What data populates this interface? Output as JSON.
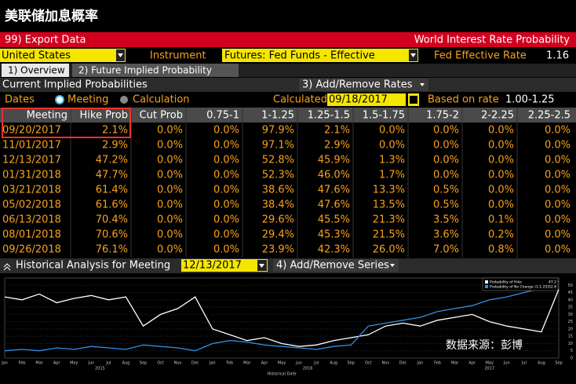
{
  "title": "美联储加息概率",
  "toolbar": {
    "export": "99) Export Data",
    "heading": "World Interest Rate Probability"
  },
  "selectors": {
    "country": "United States",
    "instrument_label": "Instrument",
    "instrument": "Futures: Fed Funds - Effective",
    "rate_label": "Fed Effective Rate",
    "rate": "1.16"
  },
  "tabs": [
    "1) Overview",
    "2) Future Implied Probability"
  ],
  "section": {
    "title": "Current Implied Probabilities",
    "button": "3) Add/Remove Rates"
  },
  "options": {
    "dates_label": "Dates",
    "meeting": "Meeting",
    "calculation": "Calculation",
    "calculated_label": "Calculated",
    "calculated": "09/18/2017",
    "based_label": "Based on rate",
    "based": "1.00-1.25"
  },
  "table": {
    "columns": [
      "Meeting",
      "Hike Prob",
      "Cut Prob",
      "0.75-1",
      "1-1.25",
      "1.25-1.5",
      "1.5-1.75",
      "1.75-2",
      "2-2.25",
      "2.25-2.5"
    ],
    "rows": [
      [
        "09/20/2017",
        "2.1%",
        "0.0%",
        "0.0%",
        "97.9%",
        "2.1%",
        "0.0%",
        "0.0%",
        "0.0%",
        "0.0%"
      ],
      [
        "11/01/2017",
        "2.9%",
        "0.0%",
        "0.0%",
        "97.1%",
        "2.9%",
        "0.0%",
        "0.0%",
        "0.0%",
        "0.0%"
      ],
      [
        "12/13/2017",
        "47.2%",
        "0.0%",
        "0.0%",
        "52.8%",
        "45.9%",
        "1.3%",
        "0.0%",
        "0.0%",
        "0.0%"
      ],
      [
        "01/31/2018",
        "47.7%",
        "0.0%",
        "0.0%",
        "52.3%",
        "46.0%",
        "1.7%",
        "0.0%",
        "0.0%",
        "0.0%"
      ],
      [
        "03/21/2018",
        "61.4%",
        "0.0%",
        "0.0%",
        "38.6%",
        "47.6%",
        "13.3%",
        "0.5%",
        "0.0%",
        "0.0%"
      ],
      [
        "05/02/2018",
        "61.6%",
        "0.0%",
        "0.0%",
        "38.4%",
        "47.6%",
        "13.5%",
        "0.5%",
        "0.0%",
        "0.0%"
      ],
      [
        "06/13/2018",
        "70.4%",
        "0.0%",
        "0.0%",
        "29.6%",
        "45.5%",
        "21.3%",
        "3.5%",
        "0.1%",
        "0.0%"
      ],
      [
        "08/01/2018",
        "70.6%",
        "0.0%",
        "0.0%",
        "29.4%",
        "45.3%",
        "21.5%",
        "3.6%",
        "0.2%",
        "0.0%"
      ],
      [
        "09/26/2018",
        "76.1%",
        "0.0%",
        "0.0%",
        "23.9%",
        "42.3%",
        "26.0%",
        "7.0%",
        "0.8%",
        "0.0%"
      ]
    ]
  },
  "history": {
    "title": "Historical Analysis for Meeting",
    "meeting": "12/13/2017",
    "button": "4) Add/Remove Series",
    "chart": {
      "type": "line",
      "categories": [
        "Jan",
        "Feb",
        "Mar",
        "Apr",
        "May",
        "Jun",
        "Jul",
        "Aug",
        "Sep",
        "Oct",
        "Nov",
        "Dec",
        "Jan",
        "Feb",
        "Mar",
        "Apr",
        "May",
        "Jun",
        "Jul",
        "Aug",
        "Sep",
        "Oct",
        "Nov",
        "Dec",
        "Jan",
        "Feb",
        "Mar",
        "Apr",
        "May",
        "Jun",
        "Jul",
        "Aug",
        "Sep"
      ],
      "years": [
        "2015",
        "2016",
        "2017"
      ],
      "x_label": "Historical Date",
      "series": [
        {
          "name": "Probability of Hike",
          "color": "#ffffff",
          "last": "47.2",
          "values": [
            42,
            40,
            44,
            38,
            41,
            43,
            40,
            42,
            22,
            30,
            34,
            42,
            20,
            16,
            12,
            14,
            10,
            8,
            9,
            12,
            14,
            16,
            22,
            24,
            22,
            26,
            28,
            30,
            25,
            22,
            20,
            18,
            47.2
          ]
        },
        {
          "name": "Probability of No Change (1-1.25)",
          "color": "#2f8fe8",
          "last": "52.8",
          "values": [
            5,
            6,
            5,
            7,
            6,
            8,
            7,
            6,
            9,
            8,
            7,
            5,
            10,
            12,
            11,
            9,
            8,
            7,
            6,
            8,
            9,
            22,
            24,
            26,
            28,
            32,
            34,
            36,
            40,
            42,
            45,
            48,
            52.8
          ]
        }
      ],
      "ylim": [
        0,
        55
      ],
      "yticks": [
        0,
        5,
        10,
        15,
        20,
        25,
        30,
        35,
        40,
        45,
        50
      ]
    }
  },
  "watermark": "数据来源：彭博"
}
